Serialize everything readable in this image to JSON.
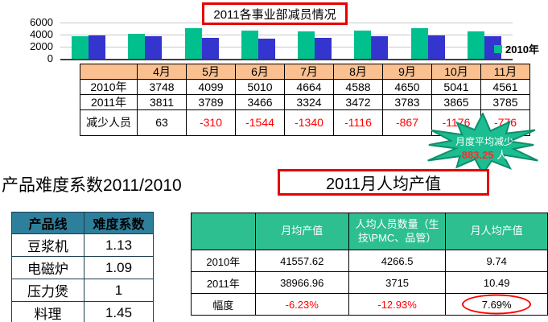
{
  "titles": {
    "difficulty": "产品难度系数2011/2010",
    "productivity": "2011月人均产值"
  },
  "starburst": {
    "line1": "月度平均减少",
    "value": "883.25",
    "unit": "人",
    "fill_color": "#1CBD90",
    "border_color": "#0F8E6B",
    "value_color": "#FF2A2A"
  },
  "colors": {
    "negative_text": "#FF0000",
    "red_box_border": "#E60000",
    "month_header_bg": "#FAC090",
    "difficulty_header_bg": "#2E7F9C",
    "productivity_header_bg": "#2DBF90"
  },
  "chart_data": [
    {
      "type": "bar",
      "title": "2011各事业部减员情况",
      "categories": [
        "4月",
        "5月",
        "6月",
        "7月",
        "8月",
        "9月",
        "10月",
        "11月"
      ],
      "series": [
        {
          "name": "2010年",
          "color": "#00C08E",
          "values": [
            3748,
            4099,
            5010,
            4664,
            4588,
            4650,
            5041,
            4561
          ]
        },
        {
          "name": "2011年",
          "color": "#3434CE",
          "values": [
            3811,
            3789,
            3466,
            3324,
            3472,
            3783,
            3865,
            3785
          ]
        }
      ],
      "ylim": [
        0,
        6000
      ],
      "yticks": [
        6000,
        4000,
        2000,
        0
      ],
      "grid": true,
      "legend_position": "right",
      "legend_visible_entries": [
        "2010年"
      ],
      "x_axis_labels_shown": false
    },
    {
      "type": "table",
      "name": "reduction",
      "columns": [
        "",
        "4月",
        "5月",
        "6月",
        "7月",
        "8月",
        "9月",
        "10月",
        "11月"
      ],
      "rows": [
        [
          "2010年",
          "3748",
          "4099",
          "5010",
          "4664",
          "4588",
          "4650",
          "5041",
          "4561"
        ],
        [
          "2011年",
          "3811",
          "3789",
          "3466",
          "3324",
          "3472",
          "3783",
          "3865",
          "3785"
        ],
        [
          "减少人员",
          "63",
          "-310",
          "-1544",
          "-1340",
          "-1116",
          "-867",
          "-1176",
          "-776"
        ]
      ]
    },
    {
      "type": "table",
      "name": "difficulty",
      "columns": [
        "产品线",
        "难度系数"
      ],
      "rows": [
        [
          "豆浆机",
          "1.13"
        ],
        [
          "电磁炉",
          "1.09"
        ],
        [
          "压力煲",
          "1"
        ],
        [
          "料理",
          "1.45"
        ]
      ]
    },
    {
      "type": "table",
      "name": "productivity",
      "columns": [
        "",
        "月均产值",
        "人均人员数量（生技\\PMC、品管）",
        "月人均产值"
      ],
      "rows": [
        [
          "2010年",
          "41557.62",
          "4266.5",
          "9.74"
        ],
        [
          "2011年",
          "38966.96",
          "3715",
          "10.49"
        ],
        [
          "幅度",
          "-6.23%",
          "-12.93%",
          "7.69%"
        ]
      ],
      "circled_cell": {
        "row": 2,
        "col": 3,
        "value": "7.69%"
      }
    }
  ]
}
